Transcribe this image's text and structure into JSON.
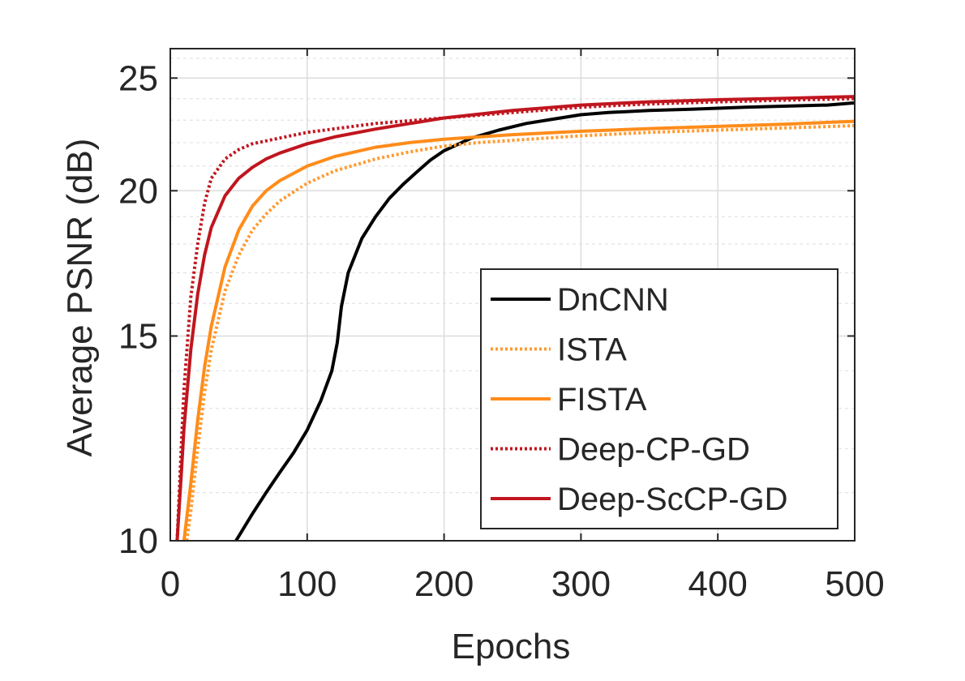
{
  "chart_data": {
    "type": "line",
    "xlabel": "Epochs",
    "ylabel": "Average PSNR (dB)",
    "xlim": [
      0,
      500
    ],
    "ylim": [
      10,
      26.5
    ],
    "y_scale": "log",
    "x_ticks": [
      0,
      100,
      200,
      300,
      400,
      500
    ],
    "y_ticks": [
      10,
      15,
      20,
      25
    ],
    "grid": true,
    "minor_grid_y": true,
    "legend_position": "bottom-right",
    "series": [
      {
        "name": "DnCNN",
        "color": "#000000",
        "style": "solid",
        "x": [
          48,
          60,
          70,
          80,
          90,
          100,
          110,
          118,
          122,
          125,
          130,
          140,
          150,
          160,
          170,
          180,
          190,
          200,
          220,
          240,
          260,
          280,
          300,
          320,
          350,
          380,
          400,
          420,
          450,
          480,
          500
        ],
        "y": [
          10.0,
          10.55,
          11.0,
          11.45,
          11.9,
          12.45,
          13.2,
          14.0,
          14.8,
          15.9,
          17.0,
          18.2,
          19.0,
          19.7,
          20.25,
          20.75,
          21.25,
          21.65,
          22.2,
          22.55,
          22.85,
          23.05,
          23.25,
          23.35,
          23.45,
          23.5,
          23.55,
          23.6,
          23.65,
          23.7,
          23.8
        ]
      },
      {
        "name": "ISTA",
        "color": "#ff9a30",
        "style": "dotted",
        "x": [
          12,
          15,
          20,
          25,
          30,
          40,
          50,
          60,
          70,
          80,
          100,
          120,
          150,
          175,
          200,
          225,
          250,
          300,
          350,
          400,
          450,
          500
        ],
        "y": [
          10.0,
          10.6,
          12.0,
          13.4,
          14.6,
          16.4,
          17.6,
          18.5,
          19.1,
          19.6,
          20.3,
          20.8,
          21.3,
          21.6,
          21.85,
          22.0,
          22.1,
          22.3,
          22.45,
          22.55,
          22.65,
          22.75
        ]
      },
      {
        "name": "FISTA",
        "color": "#ff8c1a",
        "style": "solid",
        "x": [
          10,
          15,
          20,
          25,
          30,
          40,
          50,
          60,
          70,
          80,
          100,
          120,
          150,
          175,
          200,
          225,
          250,
          300,
          350,
          400,
          450,
          500
        ],
        "y": [
          10.0,
          11.2,
          12.7,
          14.1,
          15.3,
          17.2,
          18.5,
          19.4,
          20.0,
          20.4,
          21.0,
          21.4,
          21.8,
          22.0,
          22.15,
          22.25,
          22.35,
          22.5,
          22.62,
          22.72,
          22.82,
          22.95
        ]
      },
      {
        "name": "Deep-CP-GD",
        "color": "#c0161f",
        "style": "dotted",
        "x": [
          5,
          8,
          10,
          15,
          20,
          25,
          30,
          40,
          50,
          60,
          80,
          100,
          150,
          200,
          250,
          300,
          350,
          400,
          450,
          500
        ],
        "y": [
          10.0,
          12.0,
          13.5,
          16.2,
          18.0,
          19.5,
          20.5,
          21.3,
          21.7,
          21.95,
          22.2,
          22.45,
          22.85,
          23.1,
          23.35,
          23.6,
          23.75,
          23.85,
          23.93,
          24.0
        ]
      },
      {
        "name": "Deep-ScCP-GD",
        "color": "#c0161f",
        "style": "solid",
        "x": [
          5,
          8,
          10,
          15,
          20,
          25,
          30,
          40,
          50,
          60,
          70,
          80,
          100,
          120,
          150,
          200,
          250,
          300,
          350,
          400,
          450,
          500
        ],
        "y": [
          10.0,
          11.4,
          12.5,
          14.6,
          16.3,
          17.6,
          18.6,
          19.8,
          20.5,
          20.95,
          21.3,
          21.55,
          21.95,
          22.25,
          22.6,
          23.1,
          23.45,
          23.7,
          23.85,
          23.95,
          24.02,
          24.1
        ]
      }
    ]
  }
}
